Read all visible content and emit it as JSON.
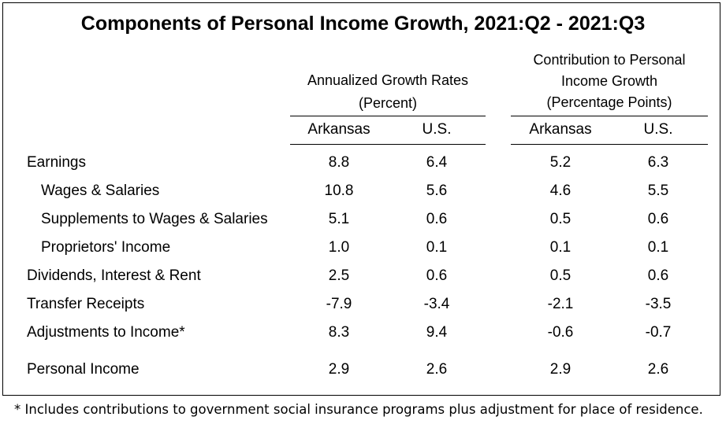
{
  "title": "Components of Personal Income Growth, 2021:Q2 - 2021:Q3",
  "chart_data": {
    "type": "table",
    "title": "Components of Personal Income Growth, 2021:Q2 - 2021:Q3",
    "groups": [
      {
        "lines": [
          "Annualized Growth Rates",
          "(Percent)"
        ],
        "columns": [
          "Arkansas",
          "U.S."
        ]
      },
      {
        "lines": [
          "Contribution to Personal",
          "Income Growth",
          "(Percentage Points)"
        ],
        "columns": [
          "Arkansas",
          "U.S."
        ]
      }
    ],
    "rows": [
      {
        "label": "Earnings",
        "indent": false,
        "values": [
          "8.8",
          "6.4",
          "5.2",
          "6.3"
        ]
      },
      {
        "label": "Wages & Salaries",
        "indent": true,
        "values": [
          "10.8",
          "5.6",
          "4.6",
          "5.5"
        ]
      },
      {
        "label": "Supplements to Wages & Salaries",
        "indent": true,
        "values": [
          "5.1",
          "0.6",
          "0.5",
          "0.6"
        ]
      },
      {
        "label": "Proprietors' Income",
        "indent": true,
        "values": [
          "1.0",
          "0.1",
          "0.1",
          "0.1"
        ]
      },
      {
        "label": "Dividends, Interest & Rent",
        "indent": false,
        "values": [
          "2.5",
          "0.6",
          "0.5",
          "0.6"
        ]
      },
      {
        "label": "Transfer Receipts",
        "indent": false,
        "values": [
          "-7.9",
          "-3.4",
          "-2.1",
          "-3.5"
        ]
      },
      {
        "label": "Adjustments to Income*",
        "indent": false,
        "values": [
          "8.3",
          "9.4",
          "-0.6",
          "-0.7"
        ]
      },
      {
        "label": "Personal Income",
        "indent": false,
        "values": [
          "2.9",
          "2.6",
          "2.9",
          "2.6"
        ]
      }
    ]
  },
  "footnote": "* Includes contributions to government social insurance programs plus adjustment for place of residence."
}
